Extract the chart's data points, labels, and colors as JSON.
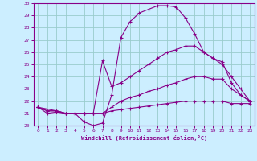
{
  "xlabel": "Windchill (Refroidissement éolien,°C)",
  "bg_color": "#cceeff",
  "line_color": "#880088",
  "grid_color": "#99cccc",
  "xlim": [
    -0.5,
    23.5
  ],
  "ylim": [
    20.0,
    30.0
  ],
  "xticks": [
    0,
    1,
    2,
    3,
    4,
    5,
    6,
    7,
    8,
    9,
    10,
    11,
    12,
    13,
    14,
    15,
    16,
    17,
    18,
    19,
    20,
    21,
    22,
    23
  ],
  "yticks": [
    20,
    21,
    22,
    23,
    24,
    25,
    26,
    27,
    28,
    29,
    30
  ],
  "curves": [
    {
      "x": [
        0,
        1,
        2,
        3,
        4,
        5,
        6,
        7,
        8,
        9,
        10,
        11,
        12,
        13,
        14,
        15,
        16,
        17,
        18,
        19,
        20,
        21,
        22,
        23
      ],
      "y": [
        21.5,
        21.0,
        21.1,
        21.0,
        21.0,
        20.3,
        20.0,
        20.2,
        22.5,
        27.2,
        28.5,
        29.2,
        29.5,
        29.8,
        29.8,
        29.7,
        28.8,
        27.5,
        26.0,
        25.5,
        25.0,
        24.0,
        23.0,
        22.0
      ]
    },
    {
      "x": [
        0,
        2,
        3,
        4,
        5,
        6,
        7,
        8,
        9,
        10,
        11,
        12,
        13,
        14,
        15,
        16,
        17,
        18,
        19,
        20,
        21,
        22,
        23
      ],
      "y": [
        21.5,
        21.2,
        21.0,
        21.0,
        21.0,
        21.0,
        25.3,
        23.2,
        23.5,
        24.0,
        24.5,
        25.0,
        25.5,
        26.0,
        26.2,
        26.5,
        26.5,
        26.0,
        25.5,
        25.2,
        23.5,
        22.5,
        22.0
      ]
    },
    {
      "x": [
        0,
        1,
        2,
        3,
        4,
        5,
        6,
        7,
        8,
        9,
        10,
        11,
        12,
        13,
        14,
        15,
        16,
        17,
        18,
        19,
        20,
        21,
        22,
        23
      ],
      "y": [
        21.5,
        21.2,
        21.2,
        21.0,
        21.0,
        21.0,
        21.0,
        21.0,
        21.5,
        22.0,
        22.3,
        22.5,
        22.8,
        23.0,
        23.3,
        23.5,
        23.8,
        24.0,
        24.0,
        23.8,
        23.8,
        23.0,
        22.5,
        22.0
      ]
    },
    {
      "x": [
        0,
        1,
        2,
        3,
        4,
        5,
        6,
        7,
        8,
        9,
        10,
        11,
        12,
        13,
        14,
        15,
        16,
        17,
        18,
        19,
        20,
        21,
        22,
        23
      ],
      "y": [
        21.5,
        21.2,
        21.2,
        21.0,
        21.0,
        21.0,
        21.0,
        21.0,
        21.2,
        21.3,
        21.4,
        21.5,
        21.6,
        21.7,
        21.8,
        21.9,
        22.0,
        22.0,
        22.0,
        22.0,
        22.0,
        21.8,
        21.8,
        21.8
      ]
    }
  ]
}
